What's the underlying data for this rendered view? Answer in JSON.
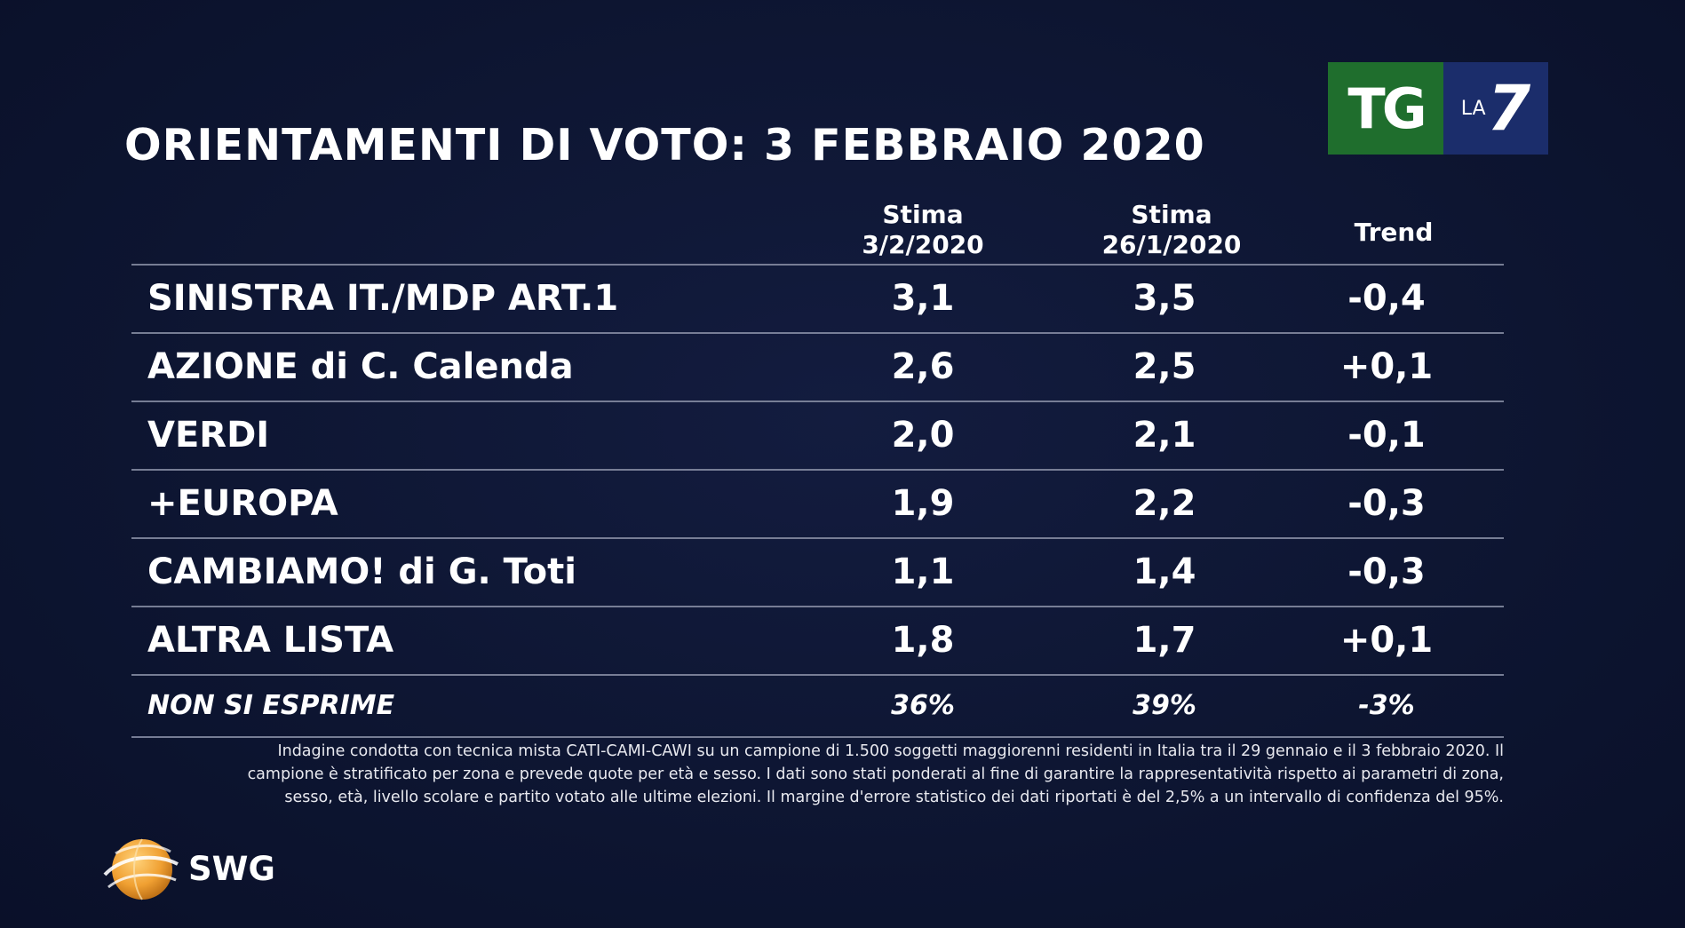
{
  "title": "ORIENTAMENTI DI VOTO: 3 FEBBRAIO 2020",
  "logo": {
    "tg": "TG",
    "la": "LA",
    "seven": "7"
  },
  "chart_data": {
    "type": "table",
    "columns": [
      {
        "line1": "Stima",
        "line2": "3/2/2020"
      },
      {
        "line1": "Stima",
        "line2": "26/1/2020"
      },
      {
        "line1": "Trend",
        "line2": ""
      }
    ],
    "rows": [
      {
        "party": "SINISTRA IT./MDP ART.1",
        "stima_3_2": "3,1",
        "stima_26_1": "3,5",
        "trend": "-0,4"
      },
      {
        "party": "AZIONE di C. Calenda",
        "stima_3_2": "2,6",
        "stima_26_1": "2,5",
        "trend": "+0,1"
      },
      {
        "party": "VERDI",
        "stima_3_2": "2,0",
        "stima_26_1": "2,1",
        "trend": "-0,1"
      },
      {
        "party": "+EUROPA",
        "stima_3_2": "1,9",
        "stima_26_1": "2,2",
        "trend": "-0,3"
      },
      {
        "party": "CAMBIAMO! di G. Toti",
        "stima_3_2": "1,1",
        "stima_26_1": "1,4",
        "trend": "-0,3"
      },
      {
        "party": "ALTRA LISTA",
        "stima_3_2": "1,8",
        "stima_26_1": "1,7",
        "trend": "+0,1"
      }
    ],
    "footer_row": {
      "party": "NON SI ESPRIME",
      "stima_3_2": "36%",
      "stima_26_1": "39%",
      "trend": "-3%"
    }
  },
  "note": [
    "Indagine condotta con tecnica mista CATI-CAMI-CAWI su un campione di 1.500 soggetti maggiorenni residenti in Italia tra il 29 gennaio e il 3 febbraio 2020. Il",
    "campione è stratificato per zona e prevede quote per età e sesso. I dati sono stati ponderati al fine di garantire la rappresentatività rispetto ai parametri di zona,",
    "sesso, età, livello scolare e partito votato alle ultime elezioni. Il margine d'errore statistico dei dati riportati è del 2,5% a un intervallo di confidenza del 95%."
  ],
  "brand": "SWG",
  "colors": {
    "background": "#0e1634",
    "tg_green": "#1f6e2d",
    "la7_blue": "#1b2d6b",
    "swg_orange": "#f0a032"
  }
}
